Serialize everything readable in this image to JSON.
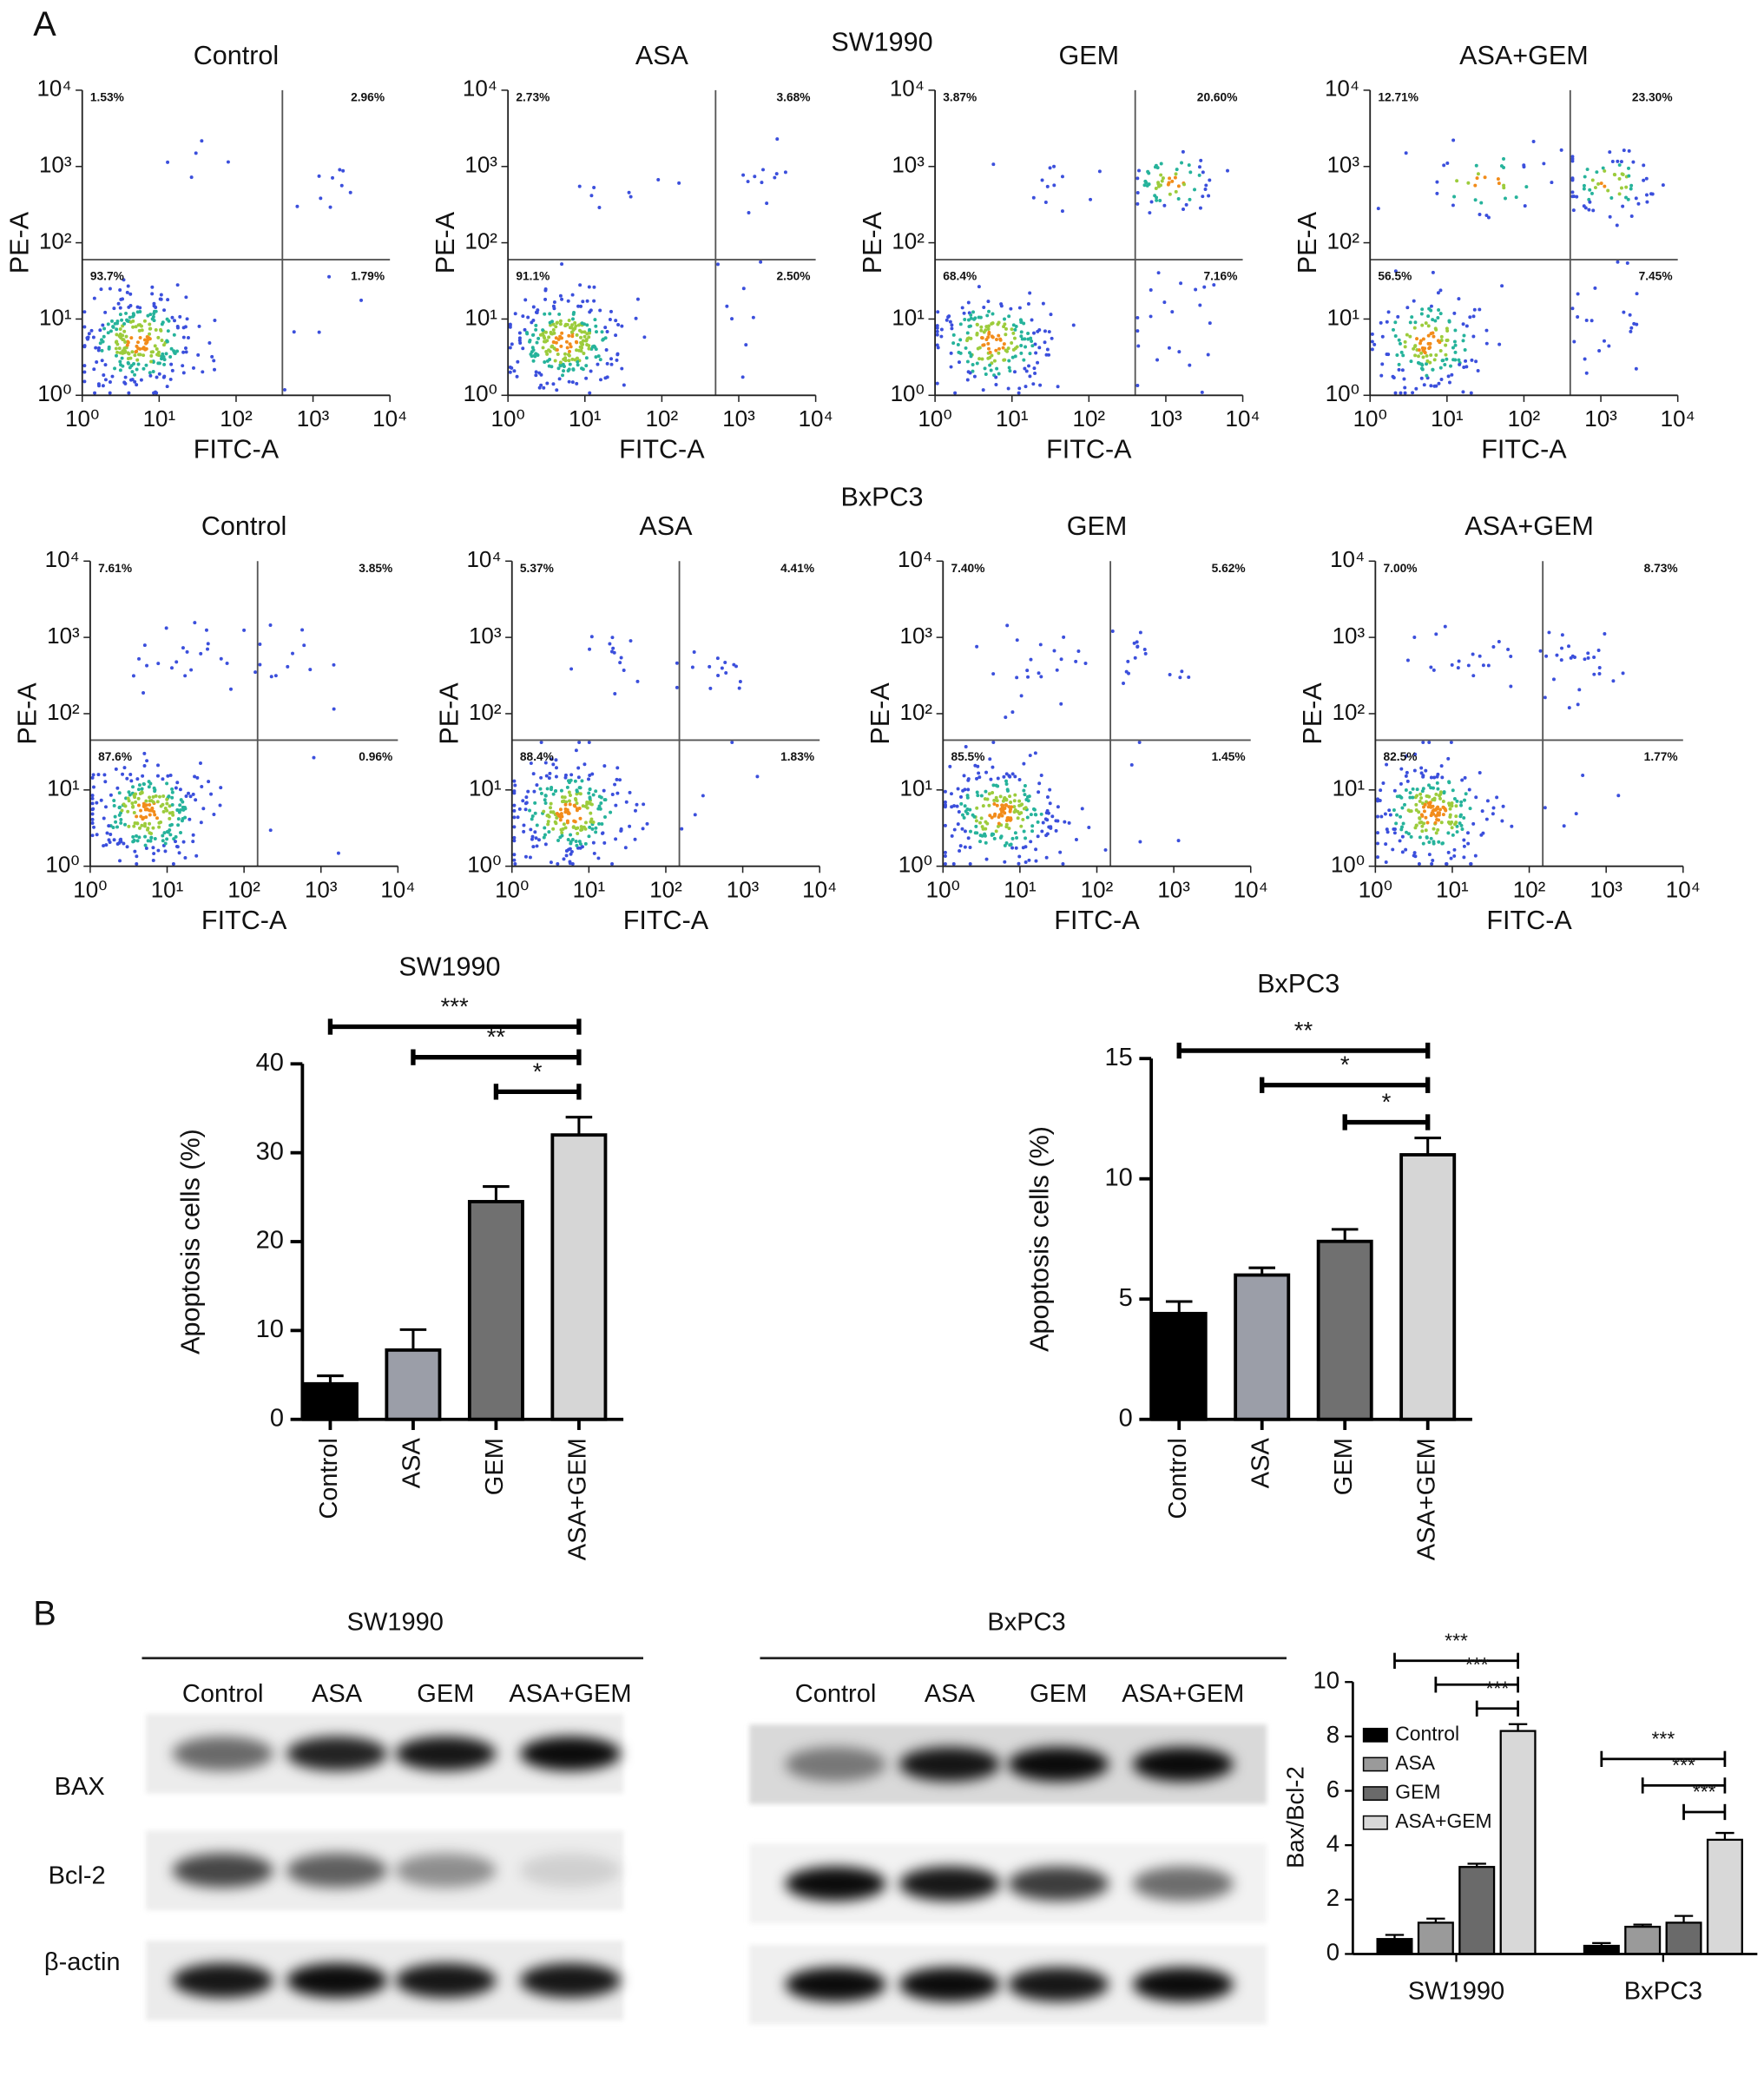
{
  "panel_labels": [
    "A",
    "B"
  ],
  "flow_headings": [
    "SW1990",
    "BxPC3"
  ],
  "chart_data": [
    {
      "type": "flow",
      "title": "Control",
      "xlabel": "FITC-A",
      "ylabel": "PE-A",
      "log_scale": true,
      "xlim": [
        1,
        10000
      ],
      "ylim": [
        1,
        10000
      ],
      "xticks": [
        {
          "value": 1,
          "label": "10⁰"
        },
        {
          "value": 10,
          "label": "10¹"
        },
        {
          "value": 100,
          "label": "10²"
        },
        {
          "value": 1000,
          "label": "10³"
        },
        {
          "value": 10000,
          "label": "10⁴"
        }
      ],
      "yticks": [
        {
          "value": 1,
          "label": "10⁰"
        },
        {
          "value": 10,
          "label": "10¹"
        },
        {
          "value": 100,
          "label": "10²"
        },
        {
          "value": 1000,
          "label": "10³"
        },
        {
          "value": 10000,
          "label": "10⁴"
        }
      ],
      "gate_x": 400,
      "gate_y": 60,
      "quadrants": [
        1.53,
        2.96,
        93.7,
        1.79
      ],
      "quadrant_labels": [
        "1.53%",
        "2.96%",
        "93.7%",
        "1.79%"
      ]
    },
    {
      "type": "flow",
      "title": "ASA",
      "xlabel": "FITC-A",
      "ylabel": "PE-A",
      "log_scale": true,
      "xlim": [
        1,
        10000
      ],
      "ylim": [
        1,
        10000
      ],
      "xticks": [
        {
          "value": 1,
          "label": "10⁰"
        },
        {
          "value": 10,
          "label": "10¹"
        },
        {
          "value": 100,
          "label": "10²"
        },
        {
          "value": 1000,
          "label": "10³"
        },
        {
          "value": 10000,
          "label": "10⁴"
        }
      ],
      "yticks": [
        {
          "value": 1,
          "label": "10⁰"
        },
        {
          "value": 10,
          "label": "10¹"
        },
        {
          "value": 100,
          "label": "10²"
        },
        {
          "value": 1000,
          "label": "10³"
        },
        {
          "value": 10000,
          "label": "10⁴"
        }
      ],
      "gate_x": 500,
      "gate_y": 60,
      "quadrants": [
        2.73,
        3.68,
        91.1,
        2.5
      ],
      "quadrant_labels": [
        "2.73%",
        "3.68%",
        "91.1%",
        "2.50%"
      ]
    },
    {
      "type": "flow",
      "title": "GEM",
      "xlabel": "FITC-A",
      "ylabel": "PE-A",
      "log_scale": true,
      "xlim": [
        1,
        10000
      ],
      "ylim": [
        1,
        10000
      ],
      "xticks": [
        {
          "value": 1,
          "label": "10⁰"
        },
        {
          "value": 10,
          "label": "10¹"
        },
        {
          "value": 100,
          "label": "10²"
        },
        {
          "value": 1000,
          "label": "10³"
        },
        {
          "value": 10000,
          "label": "10⁴"
        }
      ],
      "yticks": [
        {
          "value": 1,
          "label": "10⁰"
        },
        {
          "value": 10,
          "label": "10¹"
        },
        {
          "value": 100,
          "label": "10²"
        },
        {
          "value": 1000,
          "label": "10³"
        },
        {
          "value": 10000,
          "label": "10⁴"
        }
      ],
      "gate_x": 400,
      "gate_y": 60,
      "quadrants": [
        3.87,
        20.6,
        68.4,
        7.16
      ],
      "quadrant_labels": [
        "3.87%",
        "20.60%",
        "68.4%",
        "7.16%"
      ]
    },
    {
      "type": "flow",
      "title": "ASA+GEM",
      "xlabel": "FITC-A",
      "ylabel": "PE-A",
      "log_scale": true,
      "xlim": [
        1,
        10000
      ],
      "ylim": [
        1,
        10000
      ],
      "xticks": [
        {
          "value": 1,
          "label": "10⁰"
        },
        {
          "value": 10,
          "label": "10¹"
        },
        {
          "value": 100,
          "label": "10²"
        },
        {
          "value": 1000,
          "label": "10³"
        },
        {
          "value": 10000,
          "label": "10⁴"
        }
      ],
      "yticks": [
        {
          "value": 1,
          "label": "10⁰"
        },
        {
          "value": 10,
          "label": "10¹"
        },
        {
          "value": 100,
          "label": "10²"
        },
        {
          "value": 1000,
          "label": "10³"
        },
        {
          "value": 10000,
          "label": "10⁴"
        }
      ],
      "gate_x": 400,
      "gate_y": 60,
      "quadrants": [
        12.71,
        23.3,
        56.5,
        7.45
      ],
      "quadrant_labels": [
        "12.71%",
        "23.30%",
        "56.5%",
        "7.45%"
      ]
    },
    {
      "type": "flow",
      "title": "Control",
      "xlabel": "FITC-A",
      "ylabel": "PE-A",
      "log_scale": true,
      "xlim": [
        1,
        10000
      ],
      "ylim": [
        1,
        10000
      ],
      "xticks": [
        {
          "value": 1,
          "label": "10⁰"
        },
        {
          "value": 10,
          "label": "10¹"
        },
        {
          "value": 100,
          "label": "10²"
        },
        {
          "value": 1000,
          "label": "10³"
        },
        {
          "value": 10000,
          "label": "10⁴"
        }
      ],
      "yticks": [
        {
          "value": 1,
          "label": "10⁰"
        },
        {
          "value": 10,
          "label": "10¹"
        },
        {
          "value": 100,
          "label": "10²"
        },
        {
          "value": 1000,
          "label": "10³"
        },
        {
          "value": 10000,
          "label": "10⁴"
        }
      ],
      "gate_x": 150,
      "gate_y": 45,
      "quadrants": [
        7.61,
        3.85,
        87.6,
        0.96
      ],
      "quadrant_labels": [
        "7.61%",
        "3.85%",
        "87.6%",
        "0.96%"
      ]
    },
    {
      "type": "flow",
      "title": "ASA",
      "xlabel": "FITC-A",
      "ylabel": "PE-A",
      "log_scale": true,
      "xlim": [
        1,
        10000
      ],
      "ylim": [
        1,
        10000
      ],
      "xticks": [
        {
          "value": 1,
          "label": "10⁰"
        },
        {
          "value": 10,
          "label": "10¹"
        },
        {
          "value": 100,
          "label": "10²"
        },
        {
          "value": 1000,
          "label": "10³"
        },
        {
          "value": 10000,
          "label": "10⁴"
        }
      ],
      "yticks": [
        {
          "value": 1,
          "label": "10⁰"
        },
        {
          "value": 10,
          "label": "10¹"
        },
        {
          "value": 100,
          "label": "10²"
        },
        {
          "value": 1000,
          "label": "10³"
        },
        {
          "value": 10000,
          "label": "10⁴"
        }
      ],
      "gate_x": 150,
      "gate_y": 45,
      "quadrants": [
        5.37,
        4.41,
        88.4,
        1.83
      ],
      "quadrant_labels": [
        "5.37%",
        "4.41%",
        "88.4%",
        "1.83%"
      ]
    },
    {
      "type": "flow",
      "title": "GEM",
      "xlabel": "FITC-A",
      "ylabel": "PE-A",
      "log_scale": true,
      "xlim": [
        1,
        10000
      ],
      "ylim": [
        1,
        10000
      ],
      "xticks": [
        {
          "value": 1,
          "label": "10⁰"
        },
        {
          "value": 10,
          "label": "10¹"
        },
        {
          "value": 100,
          "label": "10²"
        },
        {
          "value": 1000,
          "label": "10³"
        },
        {
          "value": 10000,
          "label": "10⁴"
        }
      ],
      "yticks": [
        {
          "value": 1,
          "label": "10⁰"
        },
        {
          "value": 10,
          "label": "10¹"
        },
        {
          "value": 100,
          "label": "10²"
        },
        {
          "value": 1000,
          "label": "10³"
        },
        {
          "value": 10000,
          "label": "10⁴"
        }
      ],
      "gate_x": 150,
      "gate_y": 45,
      "quadrants": [
        7.4,
        5.62,
        85.5,
        1.45
      ],
      "quadrant_labels": [
        "7.40%",
        "5.62%",
        "85.5%",
        "1.45%"
      ]
    },
    {
      "type": "flow",
      "title": "ASA+GEM",
      "xlabel": "FITC-A",
      "ylabel": "PE-A",
      "log_scale": true,
      "xlim": [
        1,
        10000
      ],
      "ylim": [
        1,
        10000
      ],
      "xticks": [
        {
          "value": 1,
          "label": "10⁰"
        },
        {
          "value": 10,
          "label": "10¹"
        },
        {
          "value": 100,
          "label": "10²"
        },
        {
          "value": 1000,
          "label": "10³"
        },
        {
          "value": 10000,
          "label": "10⁴"
        }
      ],
      "yticks": [
        {
          "value": 1,
          "label": "10⁰"
        },
        {
          "value": 10,
          "label": "10¹"
        },
        {
          "value": 100,
          "label": "10²"
        },
        {
          "value": 1000,
          "label": "10³"
        },
        {
          "value": 10000,
          "label": "10⁴"
        }
      ],
      "gate_x": 150,
      "gate_y": 45,
      "quadrants": [
        7.0,
        8.73,
        82.5,
        1.77
      ],
      "quadrant_labels": [
        "7.00%",
        "8.73%",
        "82.5%",
        "1.77%"
      ]
    },
    {
      "type": "bar",
      "title": "SW1990",
      "ylabel": "Apoptosis cells (%)",
      "categories": [
        "Control",
        "ASA",
        "GEM",
        "ASA+GEM"
      ],
      "values": [
        4,
        7.8,
        24.5,
        32
      ],
      "errors": [
        0.9,
        2.3,
        1.7,
        2
      ],
      "colors": [
        "#000000",
        "#9b9ea8",
        "#707070",
        "#d6d6d6"
      ],
      "ylim": [
        0,
        40
      ],
      "yticks": [
        0,
        10,
        20,
        30,
        40
      ],
      "significance": [
        {
          "from": 0,
          "to": 3,
          "label": "***"
        },
        {
          "from": 1,
          "to": 3,
          "label": "**"
        },
        {
          "from": 2,
          "to": 3,
          "label": "*"
        }
      ]
    },
    {
      "type": "bar",
      "title": "BxPC3",
      "ylabel": "Apoptosis cells (%)",
      "categories": [
        "Control",
        "ASA",
        "GEM",
        "ASA+GEM"
      ],
      "values": [
        4.4,
        6,
        7.4,
        11
      ],
      "errors": [
        0.5,
        0.3,
        0.5,
        0.7
      ],
      "colors": [
        "#000000",
        "#9b9ea8",
        "#707070",
        "#d6d6d6"
      ],
      "ylim": [
        0,
        15
      ],
      "yticks": [
        0,
        5,
        10,
        15
      ],
      "significance": [
        {
          "from": 0,
          "to": 3,
          "label": "**"
        },
        {
          "from": 1,
          "to": 3,
          "label": "*"
        },
        {
          "from": 2,
          "to": 3,
          "label": "*"
        }
      ]
    },
    {
      "type": "grouped_bar",
      "ylabel": "Bax/Bcl-2",
      "categories": [
        "SW1990",
        "BxPC3"
      ],
      "series": [
        {
          "name": "Control",
          "color": "#000000",
          "values": [
            0.55,
            0.3
          ],
          "errors": [
            0.15,
            0.1
          ]
        },
        {
          "name": "ASA",
          "color": "#9a9a9a",
          "values": [
            1.15,
            1.0
          ],
          "errors": [
            0.15,
            0.08
          ]
        },
        {
          "name": "GEM",
          "color": "#6a6a6a",
          "values": [
            3.2,
            1.15
          ],
          "errors": [
            0.12,
            0.25
          ]
        },
        {
          "name": "ASA+GEM",
          "color": "#d8d8d8",
          "values": [
            8.2,
            4.2
          ],
          "errors": [
            0.25,
            0.25
          ]
        }
      ],
      "ylim": [
        0,
        10
      ],
      "yticks": [
        0,
        2,
        4,
        6,
        8,
        10
      ],
      "legend": "upper-left",
      "significance": [
        [
          {
            "from": 0,
            "to": 3,
            "label": "***"
          },
          {
            "from": 1,
            "to": 3,
            "label": "***"
          },
          {
            "from": 2,
            "to": 3,
            "label": "***"
          }
        ],
        [
          {
            "from": 0,
            "to": 3,
            "label": "***"
          },
          {
            "from": 1,
            "to": 3,
            "label": "***"
          },
          {
            "from": 2,
            "to": 3,
            "label": "***"
          }
        ]
      ]
    }
  ],
  "panel_b": {
    "row_labels": [
      "BAX",
      "Bcl-2",
      "β-actin"
    ],
    "blots": [
      {
        "title": "SW1990",
        "lanes": [
          "Control",
          "ASA",
          "GEM",
          "ASA+GEM"
        ],
        "bands": [
          [
            0.55,
            0.85,
            0.9,
            0.95
          ],
          [
            0.7,
            0.6,
            0.4,
            0.12
          ],
          [
            0.9,
            0.95,
            0.9,
            0.9
          ]
        ]
      },
      {
        "title": "BxPC3",
        "lanes": [
          "Control",
          "ASA",
          "GEM",
          "ASA+GEM"
        ],
        "bands": [
          [
            0.45,
            0.9,
            0.95,
            0.95
          ],
          [
            0.95,
            0.9,
            0.75,
            0.55
          ],
          [
            0.95,
            0.95,
            0.9,
            0.95
          ]
        ]
      }
    ]
  }
}
